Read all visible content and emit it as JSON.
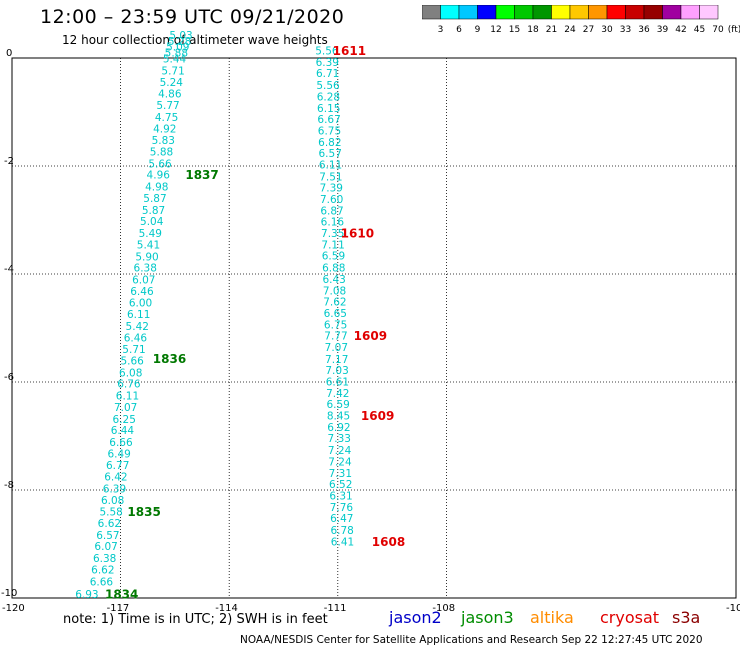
{
  "header": {
    "title": "12:00 – 23:59 UTC 09/21/2020",
    "subtitle": "12 hour collection of altimeter wave heights"
  },
  "color_scale": {
    "labels": [
      "3",
      "6",
      "9",
      "12",
      "15",
      "18",
      "21",
      "24",
      "27",
      "30",
      "33",
      "36",
      "39",
      "42",
      "45",
      "70",
      "(ft)"
    ],
    "colors": [
      "#808080",
      "#00ffff",
      "#00c8ff",
      "#0000ff",
      "#00ff00",
      "#00c800",
      "#009600",
      "#ffff00",
      "#ffc800",
      "#ff9600",
      "#ff0000",
      "#c80000",
      "#960000",
      "#a000a0",
      "#ffa0ff",
      "#ffc8ff"
    ]
  },
  "map": {
    "x_ticks": [
      "-120",
      "-117",
      "-114",
      "-111",
      "-108",
      "-10"
    ],
    "y_ticks": [
      "0",
      "-2",
      "-4",
      "-6",
      "-8",
      "-10"
    ],
    "xlim": [
      -120,
      -100
    ],
    "ylim": [
      -10,
      0
    ],
    "grid": true
  },
  "chart_data": {
    "type": "scatter",
    "units": "ft",
    "tracks": [
      {
        "mission": "jason3",
        "color": "#00c8c8",
        "label_color": "#007800",
        "points": [
          {
            "lon": -117.93,
            "lat": -9.94,
            "v": "6.93"
          },
          {
            "lon": -117.53,
            "lat": -9.71,
            "v": "6.66"
          },
          {
            "lon": -117.49,
            "lat": -9.49,
            "v": "6.62"
          },
          {
            "lon": -117.44,
            "lat": -9.28,
            "v": "6.38"
          },
          {
            "lon": -117.4,
            "lat": -9.06,
            "v": "6.07"
          },
          {
            "lon": -117.35,
            "lat": -8.85,
            "v": "6.57"
          },
          {
            "lon": -117.31,
            "lat": -8.63,
            "v": "6.62"
          },
          {
            "lon": -117.26,
            "lat": -8.42,
            "v": "5.58"
          },
          {
            "lon": -117.22,
            "lat": -8.2,
            "v": "6.08"
          },
          {
            "lon": -117.17,
            "lat": -7.99,
            "v": "6.39"
          },
          {
            "lon": -117.13,
            "lat": -7.77,
            "v": "6.42"
          },
          {
            "lon": -117.08,
            "lat": -7.56,
            "v": "6.77"
          },
          {
            "lon": -117.04,
            "lat": -7.34,
            "v": "6.49"
          },
          {
            "lon": -116.99,
            "lat": -7.13,
            "v": "6.66"
          },
          {
            "lon": -116.95,
            "lat": -6.91,
            "v": "6.44"
          },
          {
            "lon": -116.9,
            "lat": -6.7,
            "v": "6.25"
          },
          {
            "lon": -116.86,
            "lat": -6.48,
            "v": "7.07"
          },
          {
            "lon": -116.81,
            "lat": -6.27,
            "v": "6.11"
          },
          {
            "lon": -116.77,
            "lat": -6.05,
            "v": "6.76"
          },
          {
            "lon": -116.72,
            "lat": -5.84,
            "v": "6.08"
          },
          {
            "lon": -116.68,
            "lat": -5.62,
            "v": "5.66"
          },
          {
            "lon": -116.63,
            "lat": -5.41,
            "v": "5.71"
          },
          {
            "lon": -116.59,
            "lat": -5.19,
            "v": "6.46"
          },
          {
            "lon": -116.54,
            "lat": -4.98,
            "v": "5.42"
          },
          {
            "lon": -116.5,
            "lat": -4.76,
            "v": "6.11"
          },
          {
            "lon": -116.45,
            "lat": -4.55,
            "v": "6.00"
          },
          {
            "lon": -116.41,
            "lat": -4.33,
            "v": "6.46"
          },
          {
            "lon": -116.36,
            "lat": -4.12,
            "v": "6.07"
          },
          {
            "lon": -116.32,
            "lat": -3.9,
            "v": "6.38"
          },
          {
            "lon": -116.27,
            "lat": -3.69,
            "v": "5.90"
          },
          {
            "lon": -116.23,
            "lat": -3.47,
            "v": "5.41"
          },
          {
            "lon": -116.18,
            "lat": -3.26,
            "v": "5.49"
          },
          {
            "lon": -116.14,
            "lat": -3.04,
            "v": "5.04"
          },
          {
            "lon": -116.09,
            "lat": -2.83,
            "v": "5.87"
          },
          {
            "lon": -116.05,
            "lat": -2.61,
            "v": "5.87"
          },
          {
            "lon": -116.0,
            "lat": -2.4,
            "v": "4.98"
          },
          {
            "lon": -115.96,
            "lat": -2.18,
            "v": "4.96"
          },
          {
            "lon": -115.91,
            "lat": -1.97,
            "v": "5.66"
          },
          {
            "lon": -115.87,
            "lat": -1.75,
            "v": "5.88"
          },
          {
            "lon": -115.82,
            "lat": -1.54,
            "v": "5.83"
          },
          {
            "lon": -115.78,
            "lat": -1.32,
            "v": "4.92"
          },
          {
            "lon": -115.73,
            "lat": -1.11,
            "v": "4.75"
          },
          {
            "lon": -115.69,
            "lat": -0.89,
            "v": "5.77"
          },
          {
            "lon": -115.64,
            "lat": -0.68,
            "v": "4.86"
          },
          {
            "lon": -115.6,
            "lat": -0.46,
            "v": "5.24"
          },
          {
            "lon": -115.55,
            "lat": -0.25,
            "v": "5.71"
          },
          {
            "lon": -115.51,
            "lat": -0.03,
            "v": "5.44"
          }
        ],
        "extra_top": [
          {
            "lon": -115.46,
            "lat": 0.08,
            "v": "5.88"
          },
          {
            "lon": -115.42,
            "lat": 0.19,
            "v": "5.09"
          },
          {
            "lon": -115.37,
            "lat": 0.3,
            "v": "5.28"
          },
          {
            "lon": -115.33,
            "lat": 0.41,
            "v": "5.03"
          }
        ],
        "time_labels": [
          {
            "t": "1834",
            "lon": -116.97,
            "lat": -9.94
          },
          {
            "t": "1835",
            "lon": -116.35,
            "lat": -8.42
          },
          {
            "t": "1836",
            "lon": -115.65,
            "lat": -5.58
          },
          {
            "t": "1837",
            "lon": -114.75,
            "lat": -2.18
          }
        ]
      },
      {
        "mission": "cryosat",
        "color": "#00c8c8",
        "label_color": "#e00000",
        "points": [
          {
            "lon": -111.3,
            "lat": 0.12,
            "v": "5.56"
          },
          {
            "lon": -111.29,
            "lat": -0.09,
            "v": "6.39"
          },
          {
            "lon": -111.28,
            "lat": -0.3,
            "v": "6.71"
          },
          {
            "lon": -111.27,
            "lat": -0.52,
            "v": "5.56"
          },
          {
            "lon": -111.26,
            "lat": -0.73,
            "v": "6.28"
          },
          {
            "lon": -111.25,
            "lat": -0.94,
            "v": "6.15"
          },
          {
            "lon": -111.24,
            "lat": -1.15,
            "v": "6.67"
          },
          {
            "lon": -111.23,
            "lat": -1.36,
            "v": "6.75"
          },
          {
            "lon": -111.22,
            "lat": -1.57,
            "v": "6.82"
          },
          {
            "lon": -111.21,
            "lat": -1.78,
            "v": "6.57"
          },
          {
            "lon": -111.2,
            "lat": -1.99,
            "v": "6.11"
          },
          {
            "lon": -111.19,
            "lat": -2.21,
            "v": "7.51"
          },
          {
            "lon": -111.18,
            "lat": -2.42,
            "v": "7.39"
          },
          {
            "lon": -111.17,
            "lat": -2.63,
            "v": "7.60"
          },
          {
            "lon": -111.16,
            "lat": -2.84,
            "v": "6.87"
          },
          {
            "lon": -111.15,
            "lat": -3.05,
            "v": "6.16"
          },
          {
            "lon": -111.14,
            "lat": -3.26,
            "v": "7.35"
          },
          {
            "lon": -111.13,
            "lat": -3.47,
            "v": "7.11"
          },
          {
            "lon": -111.12,
            "lat": -3.68,
            "v": "6.59"
          },
          {
            "lon": -111.11,
            "lat": -3.9,
            "v": "6.88"
          },
          {
            "lon": -111.1,
            "lat": -4.11,
            "v": "6.43"
          },
          {
            "lon": -111.09,
            "lat": -4.32,
            "v": "7.08"
          },
          {
            "lon": -111.08,
            "lat": -4.53,
            "v": "7.62"
          },
          {
            "lon": -111.07,
            "lat": -4.74,
            "v": "6.65"
          },
          {
            "lon": -111.06,
            "lat": -4.95,
            "v": "6.75"
          },
          {
            "lon": -111.05,
            "lat": -5.16,
            "v": "7.77"
          },
          {
            "lon": -111.04,
            "lat": -5.37,
            "v": "7.07"
          },
          {
            "lon": -111.03,
            "lat": -5.59,
            "v": "7.17"
          },
          {
            "lon": -111.02,
            "lat": -5.8,
            "v": "7.03"
          },
          {
            "lon": -111.01,
            "lat": -6.01,
            "v": "6.61"
          },
          {
            "lon": -111.0,
            "lat": -6.22,
            "v": "7.42"
          },
          {
            "lon": -110.99,
            "lat": -6.43,
            "v": "6.59"
          },
          {
            "lon": -110.98,
            "lat": -6.64,
            "v": "8.45"
          },
          {
            "lon": -110.97,
            "lat": -6.85,
            "v": "6.92"
          },
          {
            "lon": -110.96,
            "lat": -7.06,
            "v": "7.33"
          },
          {
            "lon": -110.95,
            "lat": -7.28,
            "v": "7.24"
          },
          {
            "lon": -110.94,
            "lat": -7.49,
            "v": "7.24"
          },
          {
            "lon": -110.93,
            "lat": -7.7,
            "v": "7.31"
          },
          {
            "lon": -110.92,
            "lat": -7.91,
            "v": "6.52"
          },
          {
            "lon": -110.91,
            "lat": -8.12,
            "v": "6.31"
          },
          {
            "lon": -110.9,
            "lat": -8.33,
            "v": "7.76"
          },
          {
            "lon": -110.89,
            "lat": -8.54,
            "v": "6.47"
          },
          {
            "lon": -110.88,
            "lat": -8.76,
            "v": "6.78"
          },
          {
            "lon": -110.87,
            "lat": -8.97,
            "v": "6.41"
          }
        ],
        "time_labels": [
          {
            "t": "1611",
            "lon": -110.68,
            "lat": 0.12
          },
          {
            "t": "1610",
            "lon": -110.46,
            "lat": -3.26
          },
          {
            "t": "1609",
            "lon": -110.1,
            "lat": -5.16
          },
          {
            "t": "1609",
            "lon": -109.9,
            "lat": -6.64
          },
          {
            "t": "1608",
            "lon": -109.6,
            "lat": -8.97
          }
        ]
      }
    ]
  },
  "legend": {
    "note": "note: 1) Time is in UTC; 2) SWH is in feet",
    "missions": [
      {
        "name": "jason2",
        "color": "#0000c8"
      },
      {
        "name": "jason3",
        "color": "#008c00"
      },
      {
        "name": "altika",
        "color": "#ff8c00"
      },
      {
        "name": "cryosat",
        "color": "#e00000"
      },
      {
        "name": "s3a",
        "color": "#8b0000"
      }
    ]
  },
  "footer": {
    "credit": "NOAA/NESDIS Center for Satellite Applications and Research    Sep 22 12:27:45 UTC 2020"
  }
}
